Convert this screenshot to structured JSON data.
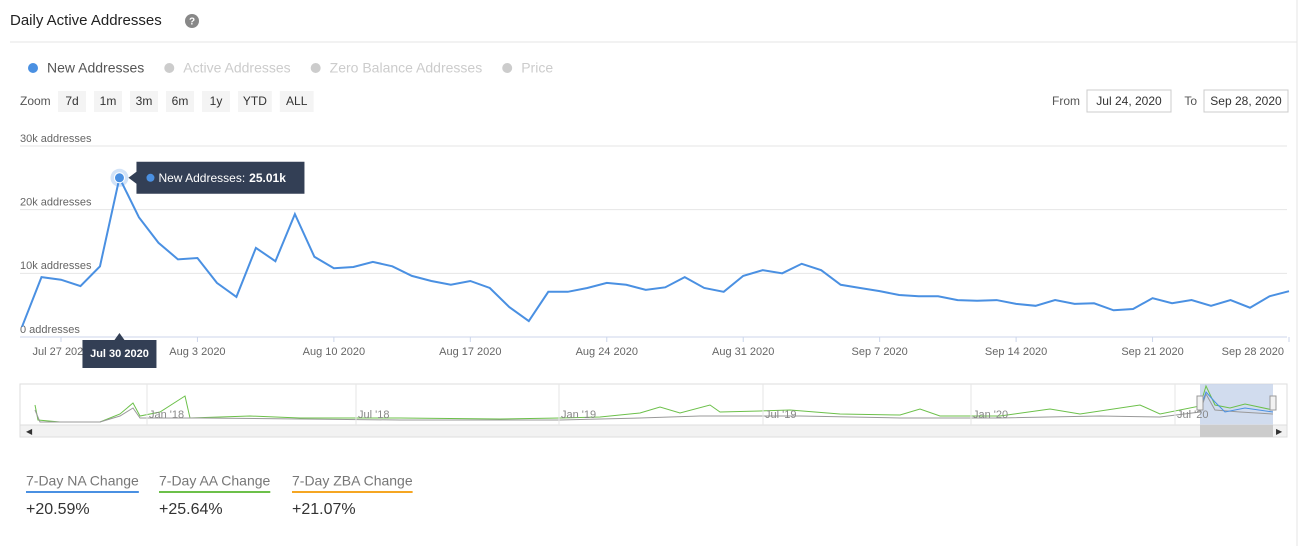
{
  "header": {
    "title": "Daily Active Addresses",
    "help": "?"
  },
  "legend_items": [
    {
      "name": "New Addresses",
      "active": true,
      "color": "#4a90e2"
    },
    {
      "name": "Active Addresses",
      "active": false,
      "color": "#cccccc"
    },
    {
      "name": "Zero Balance Addresses",
      "active": false,
      "color": "#cccccc"
    },
    {
      "name": "Price",
      "active": false,
      "color": "#cccccc"
    }
  ],
  "zoom": {
    "label": "Zoom",
    "buttons": [
      "7d",
      "1m",
      "3m",
      "6m",
      "1y",
      "YTD",
      "ALL"
    ]
  },
  "range": {
    "from_label": "From",
    "from": "Jul 24, 2020",
    "to_label": "To",
    "to": "Sep 28, 2020"
  },
  "chart_data": {
    "type": "line",
    "x": [
      "2020-07-25",
      "2020-07-26",
      "2020-07-27",
      "2020-07-28",
      "2020-07-29",
      "2020-07-30",
      "2020-07-31",
      "2020-08-01",
      "2020-08-02",
      "2020-08-03",
      "2020-08-04",
      "2020-08-05",
      "2020-08-06",
      "2020-08-07",
      "2020-08-08",
      "2020-08-09",
      "2020-08-10",
      "2020-08-11",
      "2020-08-12",
      "2020-08-13",
      "2020-08-14",
      "2020-08-15",
      "2020-08-16",
      "2020-08-17",
      "2020-08-18",
      "2020-08-19",
      "2020-08-20",
      "2020-08-21",
      "2020-08-22",
      "2020-08-23",
      "2020-08-24",
      "2020-08-25",
      "2020-08-26",
      "2020-08-27",
      "2020-08-28",
      "2020-08-29",
      "2020-08-30",
      "2020-08-31",
      "2020-09-01",
      "2020-09-02",
      "2020-09-03",
      "2020-09-04",
      "2020-09-05",
      "2020-09-06",
      "2020-09-07",
      "2020-09-08",
      "2020-09-09",
      "2020-09-10",
      "2020-09-11",
      "2020-09-12",
      "2020-09-13",
      "2020-09-14",
      "2020-09-15",
      "2020-09-16",
      "2020-09-17",
      "2020-09-18",
      "2020-09-19",
      "2020-09-20",
      "2020-09-21",
      "2020-09-22",
      "2020-09-23",
      "2020-09-24",
      "2020-09-25",
      "2020-09-26",
      "2020-09-27",
      "2020-09-28"
    ],
    "series": [
      {
        "name": "New Addresses",
        "color": "#4a90e2",
        "values": [
          1600,
          9400,
          9000,
          8000,
          11100,
          25010,
          18800,
          14800,
          12200,
          12400,
          8500,
          6300,
          14000,
          11900,
          19300,
          12600,
          10800,
          11000,
          11800,
          11100,
          9600,
          8800,
          8200,
          8800,
          7700,
          4700,
          2500,
          7100,
          7100,
          7700,
          8500,
          8200,
          7400,
          7800,
          9400,
          7700,
          7100,
          9600,
          10500,
          10000,
          11500,
          10500,
          8200,
          7700,
          7200,
          6600,
          6400,
          6400,
          5800,
          5700,
          5800,
          5200,
          4900,
          5800,
          5200,
          5300,
          4200,
          4400,
          6100,
          5300,
          5800,
          4900,
          5800,
          4600,
          6400,
          7200
        ]
      }
    ],
    "xlim": [
      "2020-07-25",
      "2020-09-28"
    ],
    "xticks": [
      {
        "value": "2020-07-27",
        "label": "Jul 27 2020"
      },
      {
        "value": "2020-08-03",
        "label": "Aug 3 2020"
      },
      {
        "value": "2020-08-10",
        "label": "Aug 10 2020"
      },
      {
        "value": "2020-08-17",
        "label": "Aug 17 2020"
      },
      {
        "value": "2020-08-24",
        "label": "Aug 24 2020"
      },
      {
        "value": "2020-08-31",
        "label": "Aug 31 2020"
      },
      {
        "value": "2020-09-07",
        "label": "Sep 7 2020"
      },
      {
        "value": "2020-09-14",
        "label": "Sep 14 2020"
      },
      {
        "value": "2020-09-21",
        "label": "Sep 21 2020"
      },
      {
        "value": "2020-09-28",
        "label": "Sep 28 2020"
      }
    ],
    "ylim": [
      0,
      30000
    ],
    "yticks": [
      {
        "value": 0,
        "label": "0 addresses"
      },
      {
        "value": 10000,
        "label": "10k addresses"
      },
      {
        "value": 20000,
        "label": "20k addresses"
      },
      {
        "value": 30000,
        "label": "30k addresses"
      }
    ],
    "grid": true,
    "tooltip": {
      "index": 5,
      "x_label": "Jul 30 2020",
      "series_label": "New Addresses:",
      "value_label": "25.01k"
    }
  },
  "navigator": {
    "labels": [
      "Jan '18",
      "Jul '18",
      "Jan '19",
      "Jul '19",
      "Jan '20",
      "Jul '20"
    ]
  },
  "stats": [
    {
      "label": "7-Day NA Change",
      "value": "+20.59%",
      "color": "#4a90e2"
    },
    {
      "label": "7-Day AA Change",
      "value": "+25.64%",
      "color": "#6cc04a"
    },
    {
      "label": "7-Day ZBA Change",
      "value": "+21.07%",
      "color": "#f5a623"
    }
  ]
}
